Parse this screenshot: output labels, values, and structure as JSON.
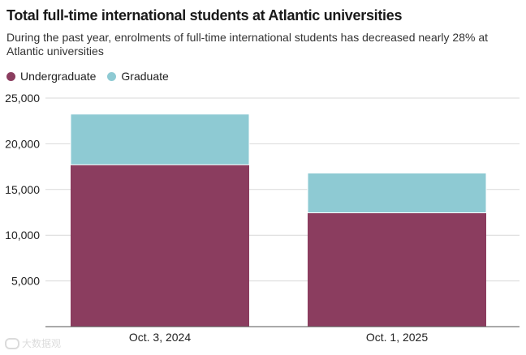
{
  "chart_data": {
    "type": "bar",
    "stacked": true,
    "title": "Total full-time international students at Atlantic universities",
    "subtitle": "During the past year, enrolments of full-time international students has decreased nearly 28% at Atlantic universities",
    "categories": [
      "Oct. 3, 2024",
      "Oct. 1, 2025"
    ],
    "series": [
      {
        "name": "Undergraduate",
        "values": [
          17700,
          12450
        ],
        "color": "#8b3d5f"
      },
      {
        "name": "Graduate",
        "values": [
          5550,
          4350
        ],
        "color": "#8ecad3"
      }
    ],
    "ylim": [
      0,
      25000
    ],
    "yticks": [
      5000,
      10000,
      15000,
      20000,
      25000
    ],
    "ytick_labels": [
      "5,000",
      "10,000",
      "15,000",
      "20,000",
      "25,000"
    ],
    "xlabel": "",
    "ylabel": "",
    "grid": true,
    "legend_position": "top-left"
  },
  "watermark": "大数据观"
}
